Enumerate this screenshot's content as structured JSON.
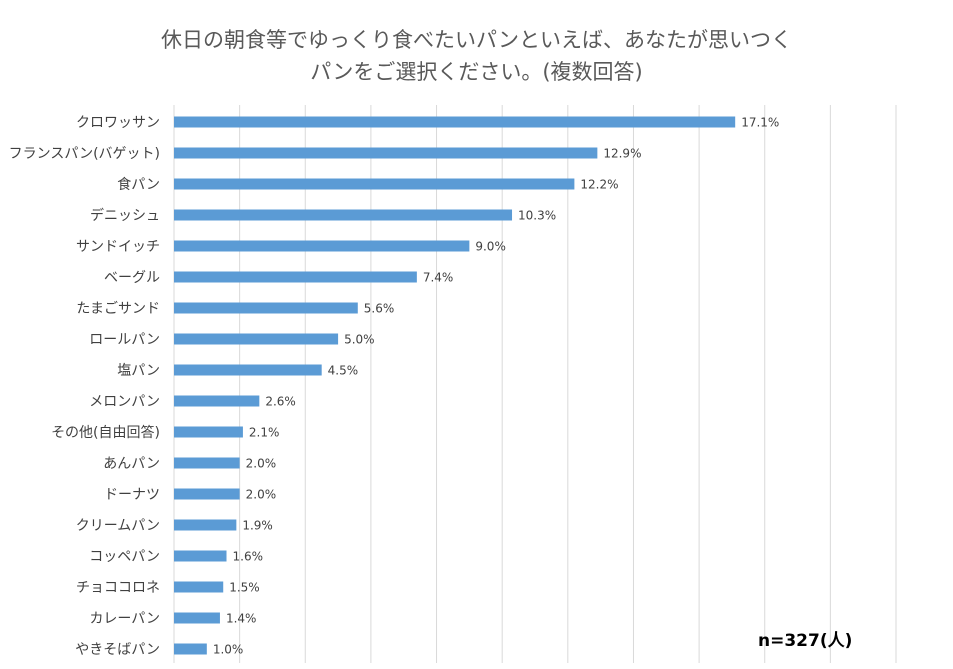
{
  "chart_data": {
    "type": "bar",
    "orientation": "horizontal",
    "title_line1": "休日の朝食等でゆっくり食べたいパンといえば、あなたが思いつく",
    "title_line2": "パンをご選択ください。(複数回答)",
    "xlim": [
      0,
      22
    ],
    "grid": true,
    "bar_color": "#5b9bd5",
    "grid_color": "#d9d9d9",
    "categories": [
      "クロワッサン",
      "フランスパン(バゲット)",
      "食パン",
      "デニッシュ",
      "サンドイッチ",
      "ベーグル",
      "たまごサンド",
      "ロールパン",
      "塩パン",
      "メロンパン",
      "その他(自由回答)",
      "あんパン",
      "ドーナツ",
      "クリームパン",
      "コッペパン",
      "チョココロネ",
      "カレーパン",
      "やきそばパン"
    ],
    "values": [
      17.1,
      12.9,
      12.2,
      10.3,
      9.0,
      7.4,
      5.6,
      5.0,
      4.5,
      2.6,
      2.1,
      2.0,
      2.0,
      1.9,
      1.6,
      1.5,
      1.4,
      1.0
    ],
    "value_labels": [
      "17.1%",
      "12.9%",
      "12.2%",
      "10.3%",
      "9.0%",
      "7.4%",
      "5.6%",
      "5.0%",
      "4.5%",
      "2.6%",
      "2.1%",
      "2.0%",
      "2.0%",
      "1.9%",
      "1.6%",
      "1.5%",
      "1.4%",
      "1.0%"
    ],
    "note": "n=327(人)"
  }
}
